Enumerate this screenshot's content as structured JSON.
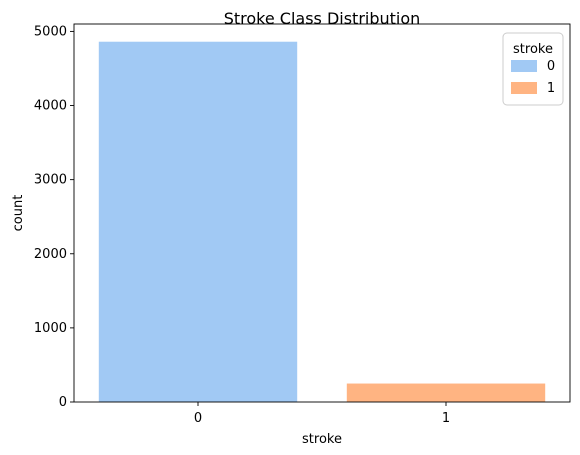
{
  "chart_data": {
    "type": "bar",
    "title": "Stroke Class Distribution",
    "xlabel": "stroke",
    "ylabel": "count",
    "categories": [
      "0",
      "1"
    ],
    "values": [
      4861,
      249
    ],
    "colors": [
      "#a1c9f4",
      "#ffb482"
    ],
    "ylim": [
      0,
      5100
    ],
    "yticks": [
      0,
      1000,
      2000,
      3000,
      4000,
      5000
    ],
    "grid": false,
    "legend": {
      "title": "stroke",
      "entries": [
        "0",
        "1"
      ],
      "placement": "top-right"
    }
  }
}
